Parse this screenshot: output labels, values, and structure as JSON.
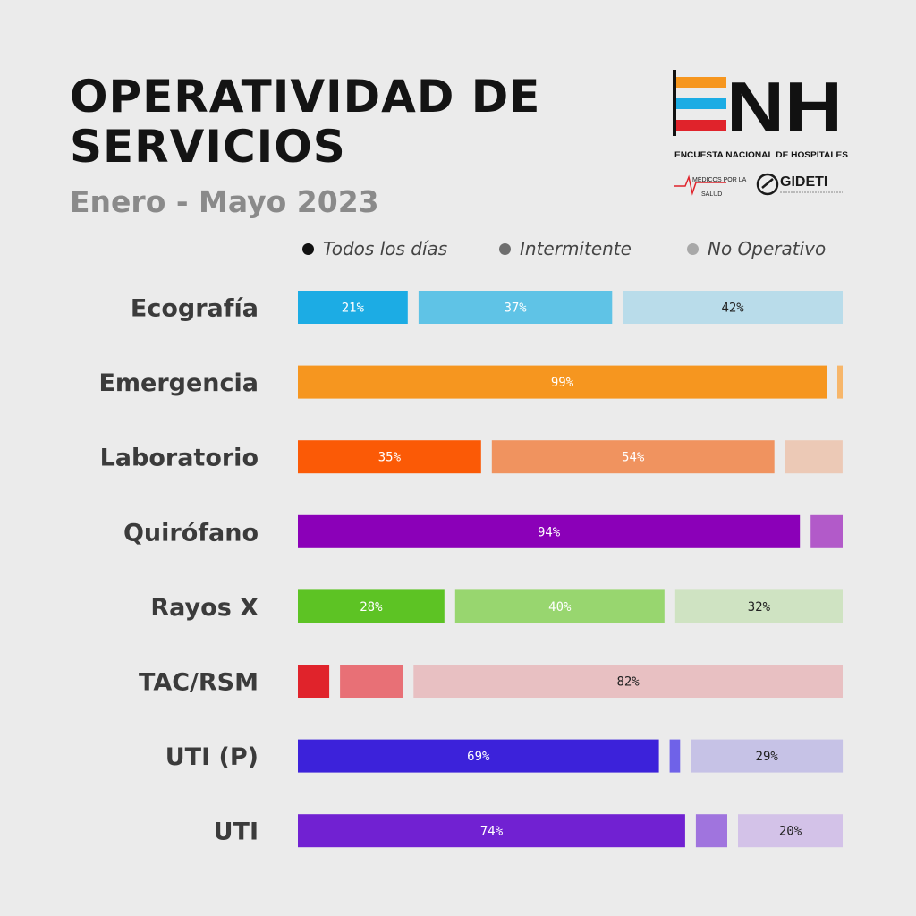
{
  "title": {
    "line1": "OPERATIVIDAD DE",
    "line2": "SERVICIOS"
  },
  "subtitle": "Enero - Mayo 2023",
  "logo": {
    "mark": "ENH",
    "tagline": "ENCUESTA NACIONAL DE HOSPITALES",
    "partner1_top": "MÉDICOS POR LA",
    "partner1_bottom": "SALUD",
    "partner2": "GIDETI"
  },
  "legend": [
    {
      "label": "Todos los días",
      "color": "#111111"
    },
    {
      "label": "Intermitente",
      "color": "#6e6e6e"
    },
    {
      "label": "No Operativo",
      "color": "#a8a8a8"
    }
  ],
  "chart_data": {
    "type": "bar",
    "orientation": "horizontal",
    "stacked": true,
    "series": [
      "Todos los días",
      "Intermitente",
      "No Operativo"
    ],
    "categories": [
      "Ecografía",
      "Emergencia",
      "Laboratorio",
      "Quirófano",
      "Rayos X",
      "TAC/RSM",
      "UTI (P)",
      "UTI"
    ],
    "rows": [
      {
        "category": "Ecografía",
        "values": [
          21,
          37,
          42
        ],
        "labels": [
          "21%",
          "37%",
          "42%"
        ],
        "colors": [
          "#1cace4",
          "#5fc3e6",
          "#b9dcea"
        ],
        "label_colors": [
          "#ffffff",
          "#ffffff",
          "#222222"
        ]
      },
      {
        "category": "Emergencia",
        "values": [
          99,
          0,
          1
        ],
        "labels": [
          "99%",
          "",
          ""
        ],
        "colors": [
          "#f6961f",
          "#f6961f",
          "#f7b66a"
        ],
        "label_colors": [
          "#ffffff",
          "#ffffff",
          "#222222"
        ]
      },
      {
        "category": "Laboratorio",
        "values": [
          35,
          54,
          11
        ],
        "labels": [
          "35%",
          "54%",
          ""
        ],
        "colors": [
          "#fb5a06",
          "#f0935f",
          "#ecc9b6"
        ],
        "label_colors": [
          "#ffffff",
          "#ffffff",
          "#222222"
        ]
      },
      {
        "category": "Quirófano",
        "values": [
          94,
          0,
          6
        ],
        "labels": [
          "94%",
          "",
          ""
        ],
        "colors": [
          "#8b00b8",
          "#8b00b8",
          "#b25ac9"
        ],
        "label_colors": [
          "#ffffff",
          "#ffffff",
          "#222222"
        ]
      },
      {
        "category": "Rayos X",
        "values": [
          28,
          40,
          32
        ],
        "labels": [
          "28%",
          "40%",
          "32%"
        ],
        "colors": [
          "#5dc324",
          "#98d66f",
          "#cfe3c2"
        ],
        "label_colors": [
          "#ffffff",
          "#ffffff",
          "#222222"
        ]
      },
      {
        "category": "TAC/RSM",
        "values": [
          6,
          12,
          82
        ],
        "labels": [
          "",
          "",
          "82%"
        ],
        "colors": [
          "#e0232b",
          "#e87076",
          "#e8c0c2"
        ],
        "label_colors": [
          "#ffffff",
          "#ffffff",
          "#222222"
        ]
      },
      {
        "category": "UTI (P)",
        "values": [
          69,
          2,
          29
        ],
        "labels": [
          "69%",
          "",
          "29%"
        ],
        "colors": [
          "#3c22da",
          "#6f62e8",
          "#c6c2e6"
        ],
        "label_colors": [
          "#ffffff",
          "#ffffff",
          "#222222"
        ]
      },
      {
        "category": "UTI",
        "values": [
          74,
          6,
          20
        ],
        "labels": [
          "74%",
          "",
          "20%"
        ],
        "colors": [
          "#7121d2",
          "#a074de",
          "#d3c2e8"
        ],
        "label_colors": [
          "#ffffff",
          "#ffffff",
          "#222222"
        ]
      }
    ],
    "xlim": [
      0,
      100
    ],
    "grid": false,
    "legend_position": "top"
  }
}
